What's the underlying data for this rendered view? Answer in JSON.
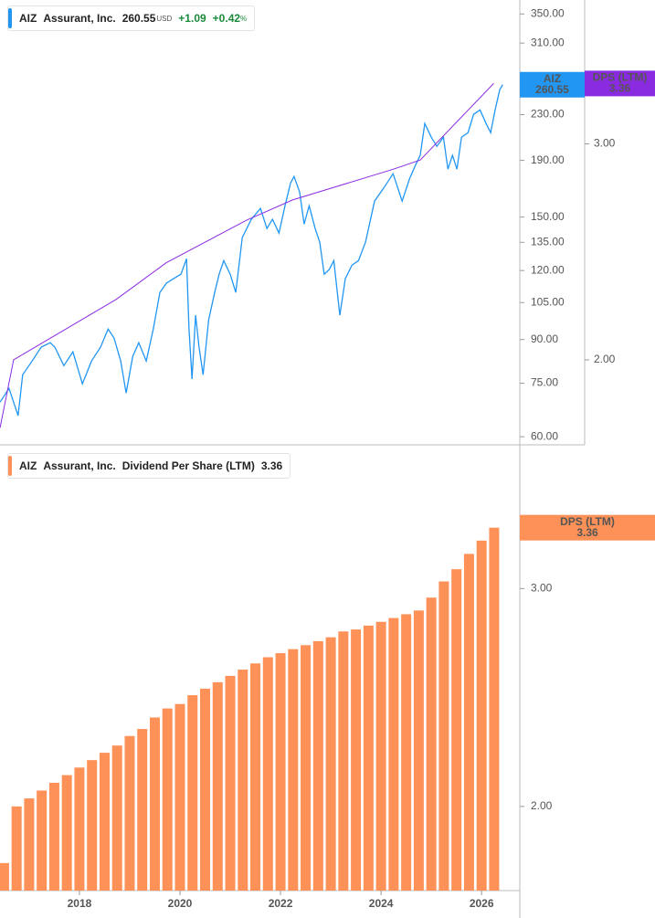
{
  "chart_data": [
    {
      "type": "line",
      "header": {
        "ticker": "AIZ",
        "company": "Assurant, Inc.",
        "currency": "USD",
        "change": "+1.09",
        "change_pct": "+0.42",
        "pct_sign": "%"
      },
      "log_scale": true,
      "grid": false,
      "xlim": [
        2016.42,
        2026.76
      ],
      "ylim": [
        58,
        371
      ],
      "yticks": [
        {
          "value": 350,
          "label": "350.00"
        },
        {
          "value": 310,
          "label": "310.00"
        },
        {
          "value": 230,
          "label": "230.00"
        },
        {
          "value": 190,
          "label": "190.00"
        },
        {
          "value": 150,
          "label": "150.00"
        },
        {
          "value": 135,
          "label": "135.00"
        },
        {
          "value": 120,
          "label": "120.00"
        },
        {
          "value": 105,
          "label": "105.00"
        },
        {
          "value": 90,
          "label": "90.00"
        },
        {
          "value": 75,
          "label": "75.00"
        },
        {
          "value": 60,
          "label": "60.00"
        }
      ],
      "y2lim": [
        1.705,
        3.93
      ],
      "y2ticks": [
        {
          "value": 3,
          "label": "3.00"
        },
        {
          "value": 2,
          "label": "2.00"
        }
      ],
      "series": [
        {
          "name": "AIZ",
          "color": "#2196f3",
          "x": [
            2016.42,
            2016.6,
            2016.78,
            2016.87,
            2017.06,
            2017.24,
            2017.42,
            2017.51,
            2017.69,
            2017.87,
            2018.06,
            2018.24,
            2018.42,
            2018.57,
            2018.69,
            2018.82,
            2018.93,
            2019.06,
            2019.18,
            2019.33,
            2019.47,
            2019.6,
            2019.73,
            2019.87,
            2020.02,
            2020.13,
            2020.18,
            2020.24,
            2020.31,
            2020.38,
            2020.46,
            2020.57,
            2020.69,
            2020.78,
            2020.87,
            2021.0,
            2021.11,
            2021.24,
            2021.42,
            2021.6,
            2021.73,
            2021.84,
            2021.97,
            2022.09,
            2022.2,
            2022.27,
            2022.38,
            2022.47,
            2022.57,
            2022.69,
            2022.78,
            2022.87,
            2022.97,
            2023.06,
            2023.18,
            2023.29,
            2023.42,
            2023.55,
            2023.69,
            2023.87,
            2024.06,
            2024.24,
            2024.42,
            2024.57,
            2024.69,
            2024.78,
            2024.87,
            2025.0,
            2025.11,
            2025.24,
            2025.33,
            2025.42,
            2025.51,
            2025.6,
            2025.73,
            2025.84,
            2025.97,
            2026.09,
            2026.18,
            2026.27,
            2026.36,
            2026.42
          ],
          "values": [
            69.3,
            73.4,
            65.5,
            77.7,
            82.3,
            87.2,
            88.8,
            87.2,
            80.7,
            85.5,
            74.8,
            82.3,
            87.2,
            94.0,
            90.5,
            82.3,
            72.0,
            83.9,
            88.8,
            82.3,
            94.0,
            109.5,
            113.8,
            116.0,
            118.2,
            126.1,
            94.0,
            76.3,
            99.6,
            87.2,
            77.7,
            97.7,
            109.5,
            118.2,
            125.1,
            118.2,
            109.5,
            137.7,
            148.6,
            155.5,
            143.0,
            148.6,
            140.3,
            157.3,
            173.0,
            177.7,
            166.5,
            145.7,
            157.3,
            143.0,
            135.1,
            118.2,
            120.5,
            125.1,
            99.6,
            116.0,
            122.7,
            125.1,
            135.1,
            160.3,
            169.7,
            179.7,
            160.3,
            176.3,
            186.7,
            194.0,
            221.6,
            209.3,
            201.5,
            209.3,
            183.2,
            194.0,
            183.2,
            209.3,
            213.3,
            230.2,
            234.6,
            221.6,
            213.3,
            234.6,
            255.1,
            260.55
          ]
        },
        {
          "name": "DPS (LTM)",
          "color": "#8a2be2",
          "axis": "y2",
          "x": [
            2016.42,
            2016.69,
            2018.73,
            2019.73,
            2021.33,
            2022.24,
            2024.24,
            2024.78,
            2026.24
          ],
          "values": [
            1.76,
            2.0,
            2.24,
            2.4,
            2.6,
            2.7,
            2.86,
            2.91,
            3.36
          ]
        }
      ]
    },
    {
      "type": "bar",
      "header": {
        "ticker": "AIZ",
        "company": "Assurant, Inc.",
        "metric": "Dividend Per Share (LTM)"
      },
      "log_scale": true,
      "grid": false,
      "xlim": [
        2016.42,
        2026.76
      ],
      "xticks": [
        2018,
        2020,
        2022,
        2024,
        2026
      ],
      "ylim": [
        1.71,
        3.9
      ],
      "yticks": [
        {
          "value": 3,
          "label": "3.00"
        },
        {
          "value": 2,
          "label": "2.00"
        }
      ],
      "series": [
        {
          "name": "DPS (LTM)",
          "color": "#fd9157",
          "x": [
            2016.5,
            2016.75,
            2017.0,
            2017.25,
            2017.5,
            2017.75,
            2018.0,
            2018.25,
            2018.5,
            2018.75,
            2019.0,
            2019.25,
            2019.5,
            2019.75,
            2020.0,
            2020.25,
            2020.5,
            2020.75,
            2021.0,
            2021.25,
            2021.5,
            2021.75,
            2022.0,
            2022.25,
            2022.5,
            2022.75,
            2023.0,
            2023.25,
            2023.5,
            2023.75,
            2024.0,
            2024.25,
            2024.5,
            2024.75,
            2025.0,
            2025.25,
            2025.5,
            2025.75,
            2026.0,
            2026.25
          ],
          "values": [
            1.8,
            2.0,
            2.03,
            2.06,
            2.09,
            2.12,
            2.15,
            2.18,
            2.21,
            2.24,
            2.28,
            2.31,
            2.36,
            2.4,
            2.42,
            2.46,
            2.49,
            2.52,
            2.55,
            2.58,
            2.61,
            2.64,
            2.66,
            2.68,
            2.7,
            2.72,
            2.74,
            2.77,
            2.78,
            2.8,
            2.82,
            2.84,
            2.86,
            2.88,
            2.95,
            3.04,
            3.11,
            3.2,
            3.28,
            3.36
          ]
        }
      ]
    }
  ]
}
